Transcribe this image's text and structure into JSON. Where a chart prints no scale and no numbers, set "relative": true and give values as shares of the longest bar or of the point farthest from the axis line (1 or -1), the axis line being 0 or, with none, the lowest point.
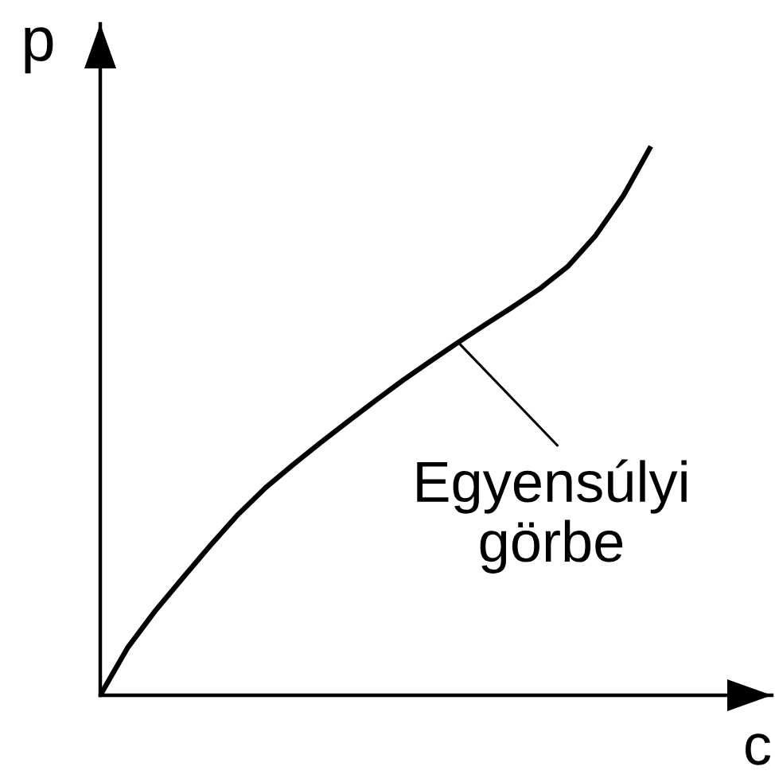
{
  "chart_data": {
    "type": "line",
    "relative": true,
    "xlabel": "c",
    "ylabel": "p",
    "categories": [
      null,
      null,
      null,
      null,
      null,
      null,
      null,
      null,
      null,
      null,
      null,
      null,
      null,
      null,
      null,
      null,
      null,
      null,
      null,
      null,
      null
    ],
    "series": [
      {
        "color": "#000000",
        "values": [
          0,
          0.087,
          0.154,
          0.214,
          0.273,
          0.329,
          0.378,
          0.42,
          0.46,
          0.499,
          0.537,
          0.574,
          0.609,
          0.643,
          0.676,
          0.708,
          0.742,
          0.782,
          0.838,
          0.91,
          1.0
        ]
      }
    ],
    "annotations": [
      "Egyensúlyi\ngörbe"
    ],
    "marker": "none",
    "line_style": "solid"
  }
}
